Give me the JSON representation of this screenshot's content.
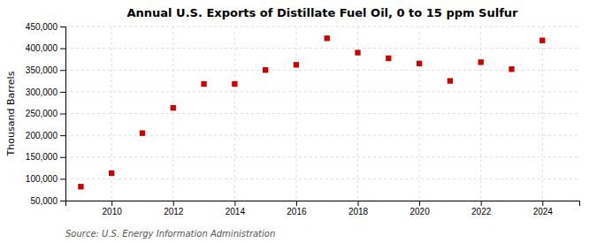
{
  "chart_data": {
    "type": "scatter",
    "title": "Annual U.S. Exports of Distillate Fuel Oil, 0 to 15 ppm Sulfur",
    "ylabel": "Thousand Barrels",
    "source": "Source: U.S. Energy Information Administration",
    "x": [
      2009,
      2010,
      2011,
      2012,
      2013,
      2014,
      2015,
      2016,
      2017,
      2018,
      2019,
      2020,
      2021,
      2022,
      2023,
      2024
    ],
    "values": [
      82000,
      113000,
      205000,
      263000,
      318000,
      318000,
      350000,
      362000,
      423000,
      390000,
      377000,
      365000,
      325000,
      368000,
      352000,
      418000
    ],
    "color": "#cc0000",
    "marker": "square",
    "xlim": [
      2008.5,
      2025.2
    ],
    "xticks": [
      2010,
      2012,
      2014,
      2016,
      2018,
      2020,
      2022,
      2024
    ],
    "ylim": [
      50000,
      450000
    ],
    "yticks": [
      {
        "value": 50000,
        "label": "50,000"
      },
      {
        "value": 100000,
        "label": "100,000"
      },
      {
        "value": 150000,
        "label": "150,000"
      },
      {
        "value": 200000,
        "label": "200,000"
      },
      {
        "value": 250000,
        "label": "250,000"
      },
      {
        "value": 300000,
        "label": "300,000"
      },
      {
        "value": 350000,
        "label": "350,000"
      },
      {
        "value": 400000,
        "label": "400,000"
      },
      {
        "value": 450000,
        "label": "450,000"
      }
    ],
    "grid": true
  }
}
